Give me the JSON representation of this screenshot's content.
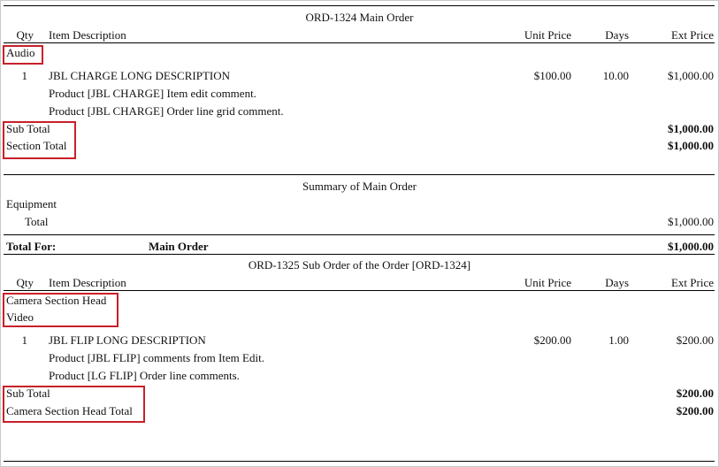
{
  "columns": {
    "qty": "Qty",
    "description": "Item Description",
    "unit_price": "Unit Price",
    "days": "Days",
    "ext_price": "Ext Price"
  },
  "highlight_color": "#c8202a",
  "orders": [
    {
      "title": "ORD-1324  Main Order",
      "section": "Audio",
      "item": {
        "qty": "1",
        "description": "JBL CHARGE LONG DESCRIPTION",
        "unit_price": "$100.00",
        "days": "10.00",
        "ext_price": "$1,000.00",
        "comments": [
          "Product [JBL CHARGE] Item edit comment.",
          "Product  [JBL CHARGE] Order line grid comment."
        ]
      },
      "sub_total_label": "Sub Total",
      "sub_total": "$1,000.00",
      "section_total_label": "Section Total",
      "section_total": "$1,000.00"
    },
    {
      "title": "ORD-1325  Sub Order of the Order [ORD-1324]",
      "section_head": "Camera Section Head",
      "section": "Video",
      "item": {
        "qty": "1",
        "description": "JBL FLIP LONG DESCRIPTION",
        "unit_price": "$200.00",
        "days": "1.00",
        "ext_price": "$200.00",
        "comments": [
          "Product [JBL FLIP] comments from Item Edit.",
          "Product [LG FLIP] Order line comments."
        ]
      },
      "sub_total_label": "Sub Total",
      "sub_total": "$200.00",
      "section_total_label": "Camera Section Head Total",
      "section_total": "$200.00"
    }
  ],
  "summary": {
    "title": "Summary of Main Order",
    "category": "Equipment",
    "total_label": "Total",
    "total": "$1,000.00",
    "total_for_label": "Total For:",
    "total_for_name": "Main Order",
    "total_for": "$1,000.00"
  }
}
